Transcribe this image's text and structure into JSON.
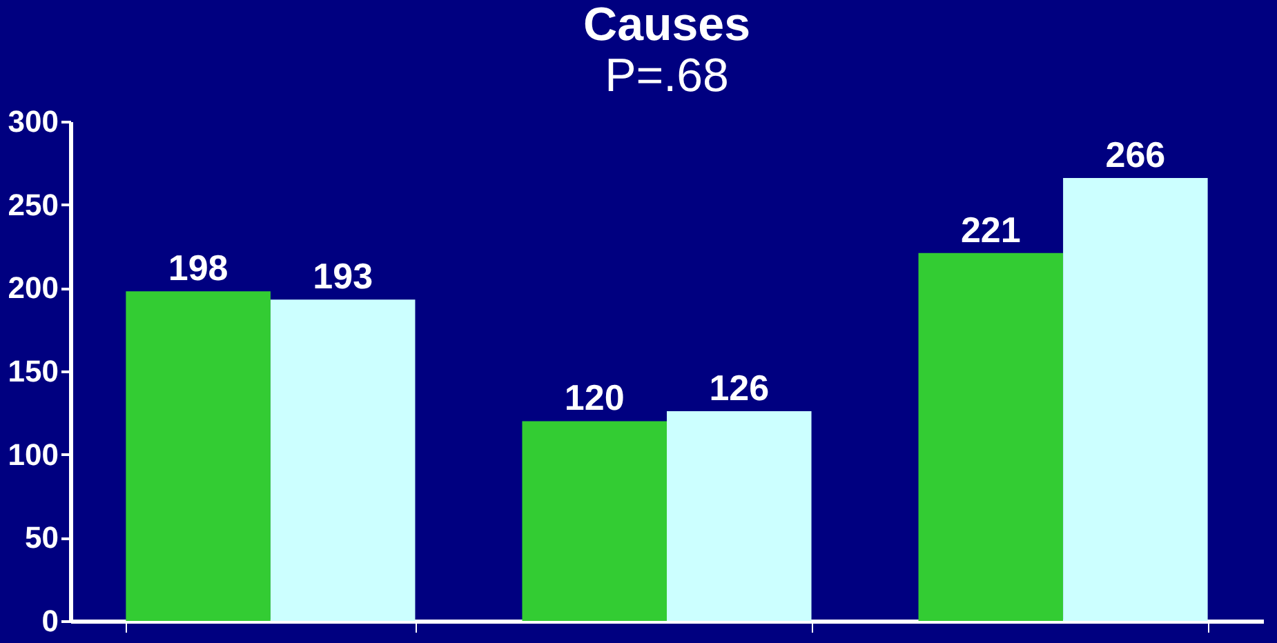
{
  "chart_data": {
    "type": "bar",
    "title": "Causes",
    "subtitle": "P=.68",
    "categories": [
      null,
      null,
      null
    ],
    "series": [
      {
        "color": "#33cc33",
        "values": [
          198,
          120,
          221
        ]
      },
      {
        "color": "#ccffff",
        "values": [
          193,
          126,
          266
        ]
      }
    ],
    "ylim": [
      0,
      300
    ],
    "yticks": [
      0,
      50,
      100,
      150,
      200,
      250,
      300
    ],
    "grid": false,
    "legend": false,
    "data_labels": true,
    "tick_labels": "y"
  }
}
